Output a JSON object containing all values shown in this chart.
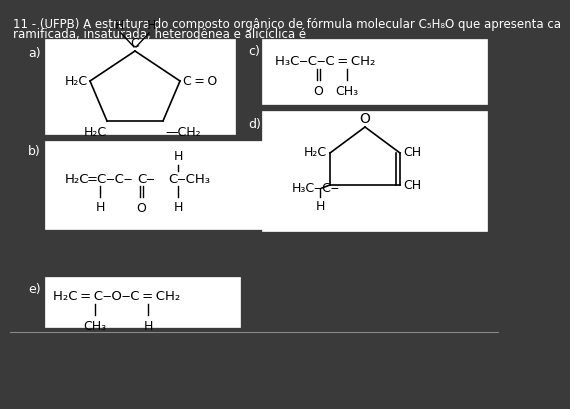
{
  "bg_color": "#3a3a3a",
  "box_bg": "#ffffff",
  "text_color": "#000000",
  "title1": "11 - (UFPB) A estrutura do composto orgânico de fórmula molecular C₅H₈O que apresenta ca",
  "title2": "ramificada, insaturada, heterogênea e alicíclica é"
}
